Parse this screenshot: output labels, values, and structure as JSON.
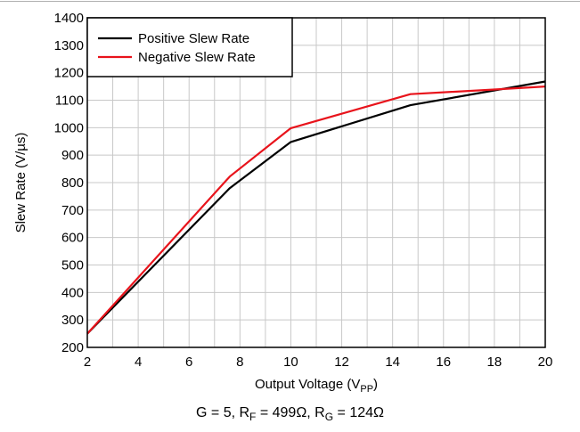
{
  "chart_data": {
    "type": "line",
    "xlabel": {
      "text": "Output Voltage (V",
      "sub": "PP",
      "suffix": ")"
    },
    "ylabel": "Slew Rate (V/µs)",
    "xlim": [
      2,
      20
    ],
    "ylim": [
      200,
      1400
    ],
    "xticks": [
      2,
      4,
      6,
      8,
      10,
      12,
      14,
      16,
      18,
      20
    ],
    "yticks": [
      200,
      300,
      400,
      500,
      600,
      700,
      800,
      900,
      1000,
      1100,
      1200,
      1300,
      1400
    ],
    "grid": true,
    "legend_position": "top-left",
    "series": [
      {
        "name": "Positive Slew Rate",
        "color": "#000000",
        "x": [
          2,
          7.6,
          10,
          14.7,
          20
        ],
        "y": [
          250,
          780,
          948,
          1082,
          1168
        ]
      },
      {
        "name": "Negative Slew Rate",
        "color": "#e8131b",
        "x": [
          2,
          7.6,
          10,
          14.7,
          18,
          20
        ],
        "y": [
          250,
          822,
          998,
          1122,
          1139,
          1150
        ]
      }
    ]
  },
  "caption": {
    "parts": [
      {
        "t": "G = 5, R"
      },
      {
        "sub": "F"
      },
      {
        "t": " = 499Ω, R"
      },
      {
        "sub": "G"
      },
      {
        "t": " = 124Ω"
      }
    ]
  }
}
